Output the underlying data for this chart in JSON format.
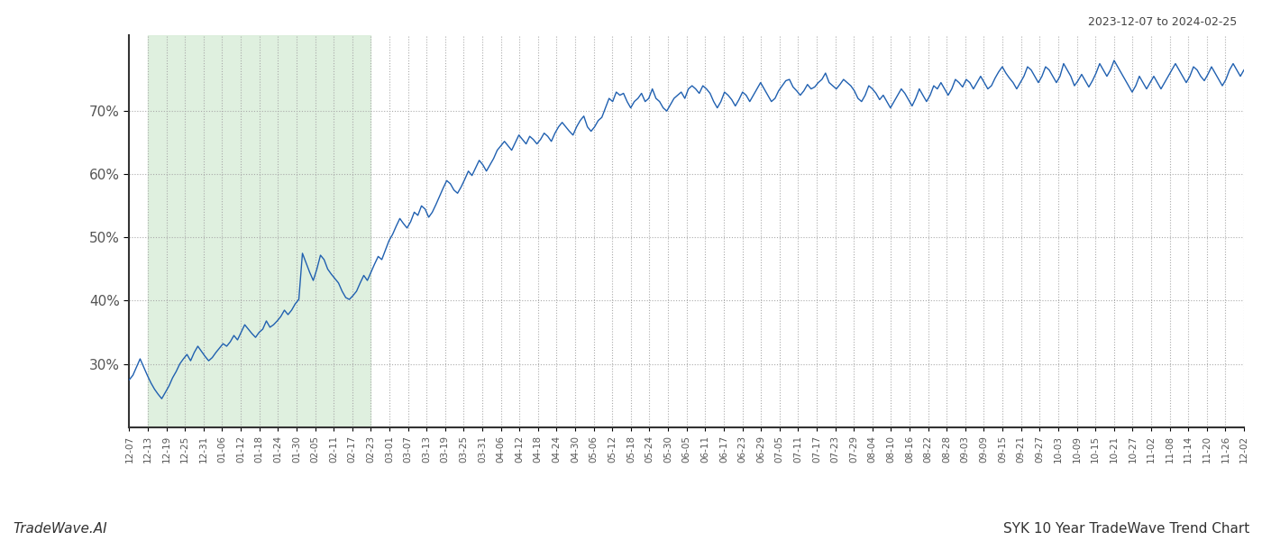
{
  "title_top_right": "2023-12-07 to 2024-02-25",
  "title_bottom_left": "TradeWave.AI",
  "title_bottom_right": "SYK 10 Year TradeWave Trend Chart",
  "background_color": "#ffffff",
  "line_color": "#2060b0",
  "shade_color": "#daeeda",
  "shade_alpha": 0.85,
  "shade_label_start": "12-13",
  "shade_label_end": "02-23",
  "yticks": [
    30,
    40,
    50,
    60,
    70
  ],
  "ylim": [
    20,
    82
  ],
  "x_labels": [
    "12-07",
    "12-13",
    "12-19",
    "12-25",
    "12-31",
    "01-06",
    "01-12",
    "01-18",
    "01-24",
    "01-30",
    "02-05",
    "02-11",
    "02-17",
    "02-23",
    "03-01",
    "03-07",
    "03-13",
    "03-19",
    "03-25",
    "03-31",
    "04-06",
    "04-12",
    "04-18",
    "04-24",
    "04-30",
    "05-06",
    "05-12",
    "05-18",
    "05-24",
    "05-30",
    "06-05",
    "06-11",
    "06-17",
    "06-23",
    "06-29",
    "07-05",
    "07-11",
    "07-17",
    "07-23",
    "07-29",
    "08-04",
    "08-10",
    "08-16",
    "08-22",
    "08-28",
    "09-03",
    "09-09",
    "09-15",
    "09-21",
    "09-27",
    "10-03",
    "10-09",
    "10-15",
    "10-21",
    "10-27",
    "11-02",
    "11-08",
    "11-14",
    "11-20",
    "11-26",
    "12-02"
  ],
  "y_values": [
    27.5,
    28.2,
    29.5,
    30.8,
    29.5,
    28.2,
    27.0,
    26.0,
    25.2,
    24.5,
    25.5,
    26.5,
    27.8,
    28.8,
    30.0,
    30.8,
    31.5,
    30.5,
    31.8,
    32.8,
    32.0,
    31.2,
    30.5,
    31.0,
    31.8,
    32.5,
    33.2,
    32.8,
    33.5,
    34.5,
    33.8,
    35.0,
    36.2,
    35.5,
    34.8,
    34.2,
    35.0,
    35.5,
    36.8,
    35.8,
    36.2,
    36.8,
    37.5,
    38.5,
    37.8,
    38.5,
    39.5,
    40.2,
    47.5,
    46.0,
    44.5,
    43.2,
    45.0,
    47.2,
    46.5,
    45.0,
    44.2,
    43.5,
    42.8,
    41.5,
    40.5,
    40.2,
    40.8,
    41.5,
    42.8,
    44.0,
    43.2,
    44.5,
    45.8,
    47.0,
    46.5,
    48.0,
    49.5,
    50.5,
    51.8,
    53.0,
    52.2,
    51.5,
    52.5,
    54.0,
    53.5,
    55.0,
    54.5,
    53.2,
    54.0,
    55.2,
    56.5,
    57.8,
    59.0,
    58.5,
    57.5,
    57.0,
    58.0,
    59.2,
    60.5,
    59.8,
    61.0,
    62.2,
    61.5,
    60.5,
    61.5,
    62.5,
    63.8,
    64.5,
    65.2,
    64.5,
    63.8,
    65.0,
    66.2,
    65.5,
    64.8,
    66.0,
    65.5,
    64.8,
    65.5,
    66.5,
    66.0,
    65.2,
    66.5,
    67.5,
    68.2,
    67.5,
    66.8,
    66.2,
    67.5,
    68.5,
    69.2,
    67.5,
    66.8,
    67.5,
    68.5,
    69.0,
    70.5,
    72.0,
    71.5,
    73.0,
    72.5,
    72.8,
    71.5,
    70.5,
    71.5,
    72.0,
    72.8,
    71.5,
    72.0,
    73.5,
    72.0,
    71.5,
    70.5,
    70.0,
    71.0,
    72.0,
    72.5,
    73.0,
    72.0,
    73.5,
    74.0,
    73.5,
    72.8,
    74.0,
    73.5,
    72.8,
    71.5,
    70.5,
    71.5,
    73.0,
    72.5,
    71.8,
    70.8,
    71.8,
    73.0,
    72.5,
    71.5,
    72.5,
    73.5,
    74.5,
    73.5,
    72.5,
    71.5,
    72.0,
    73.2,
    74.0,
    74.8,
    75.0,
    73.8,
    73.2,
    72.5,
    73.2,
    74.2,
    73.5,
    73.8,
    74.5,
    75.0,
    76.0,
    74.5,
    74.0,
    73.5,
    74.2,
    75.0,
    74.5,
    74.0,
    73.2,
    72.0,
    71.5,
    72.5,
    74.0,
    73.5,
    72.8,
    71.8,
    72.5,
    71.5,
    70.5,
    71.5,
    72.5,
    73.5,
    72.8,
    71.8,
    70.8,
    72.0,
    73.5,
    72.5,
    71.5,
    72.5,
    74.0,
    73.5,
    74.5,
    73.5,
    72.5,
    73.5,
    75.0,
    74.5,
    73.8,
    75.0,
    74.5,
    73.5,
    74.5,
    75.5,
    74.5,
    73.5,
    74.0,
    75.2,
    76.2,
    77.0,
    76.0,
    75.2,
    74.5,
    73.5,
    74.5,
    75.5,
    77.0,
    76.5,
    75.5,
    74.5,
    75.5,
    77.0,
    76.5,
    75.5,
    74.5,
    75.5,
    77.5,
    76.5,
    75.5,
    74.0,
    74.8,
    75.8,
    74.8,
    73.8,
    74.8,
    76.0,
    77.5,
    76.5,
    75.5,
    76.5,
    78.0,
    77.0,
    76.0,
    75.0,
    74.0,
    73.0,
    74.0,
    75.5,
    74.5,
    73.5,
    74.5,
    75.5,
    74.5,
    73.5,
    74.5,
    75.5,
    76.5,
    77.5,
    76.5,
    75.5,
    74.5,
    75.5,
    77.0,
    76.5,
    75.5,
    74.8,
    75.8,
    77.0,
    76.0,
    75.0,
    74.0,
    75.0,
    76.5,
    77.5,
    76.5,
    75.5,
    76.5
  ]
}
